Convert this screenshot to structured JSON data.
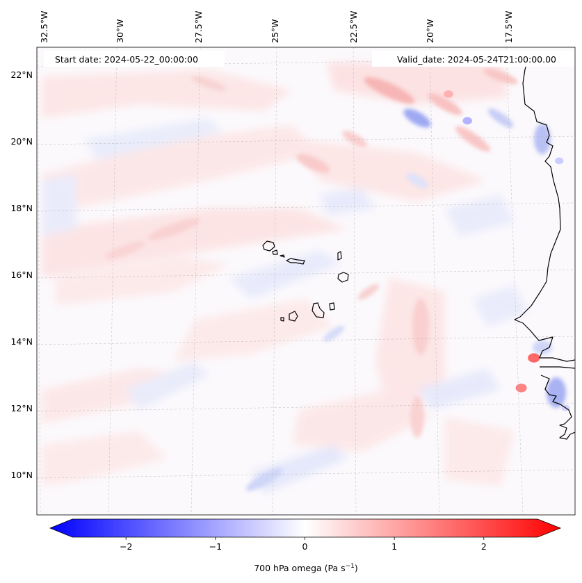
{
  "map": {
    "start_date": "Start date: 2024-05-22_00:00:00",
    "valid_date": "Valid_date: 2024-05-24T21:00:00.00",
    "lon_labels": [
      "32.5°W",
      "30°W",
      "27.5°W",
      "25°W",
      "22.5°W",
      "20°W",
      "17.5°W"
    ],
    "lat_labels": [
      "22°N",
      "20°N",
      "18°N",
      "16°N",
      "14°N",
      "12°N",
      "10°N"
    ]
  },
  "colorbar": {
    "title": "700 hPa omega (Pa s",
    "title_sup": "−1",
    "title_end": ")",
    "ticks": [
      "−2",
      "−1",
      "0",
      "1",
      "2"
    ],
    "tick_values": [
      -2,
      -1,
      0,
      1,
      2
    ],
    "range": [
      -2.6,
      2.6
    ],
    "colors": {
      "min": "#0000ff",
      "mid": "#ffffff",
      "max": "#ff0000"
    }
  },
  "chart_data": {
    "type": "heatmap",
    "variable": "700 hPa omega",
    "units": "Pa s-1",
    "region": {
      "lon_range": [
        -33,
        -16
      ],
      "lat_range": [
        9,
        23
      ]
    },
    "vmin": -2.6,
    "vmax": 2.6,
    "colormap": "bwr",
    "features": [
      {
        "lon": -17.3,
        "lat": 13.7,
        "value": 1.8
      },
      {
        "lon": -17.7,
        "lat": 12.8,
        "value": 1.5
      },
      {
        "lon": -19.4,
        "lat": 20.8,
        "value": -0.9
      },
      {
        "lon": -20.0,
        "lat": 21.6,
        "value": 0.9
      },
      {
        "lon": -16.5,
        "lat": 19.6,
        "value": -0.6
      },
      {
        "lon": -16.3,
        "lat": 12.2,
        "value": -0.5
      }
    ]
  }
}
